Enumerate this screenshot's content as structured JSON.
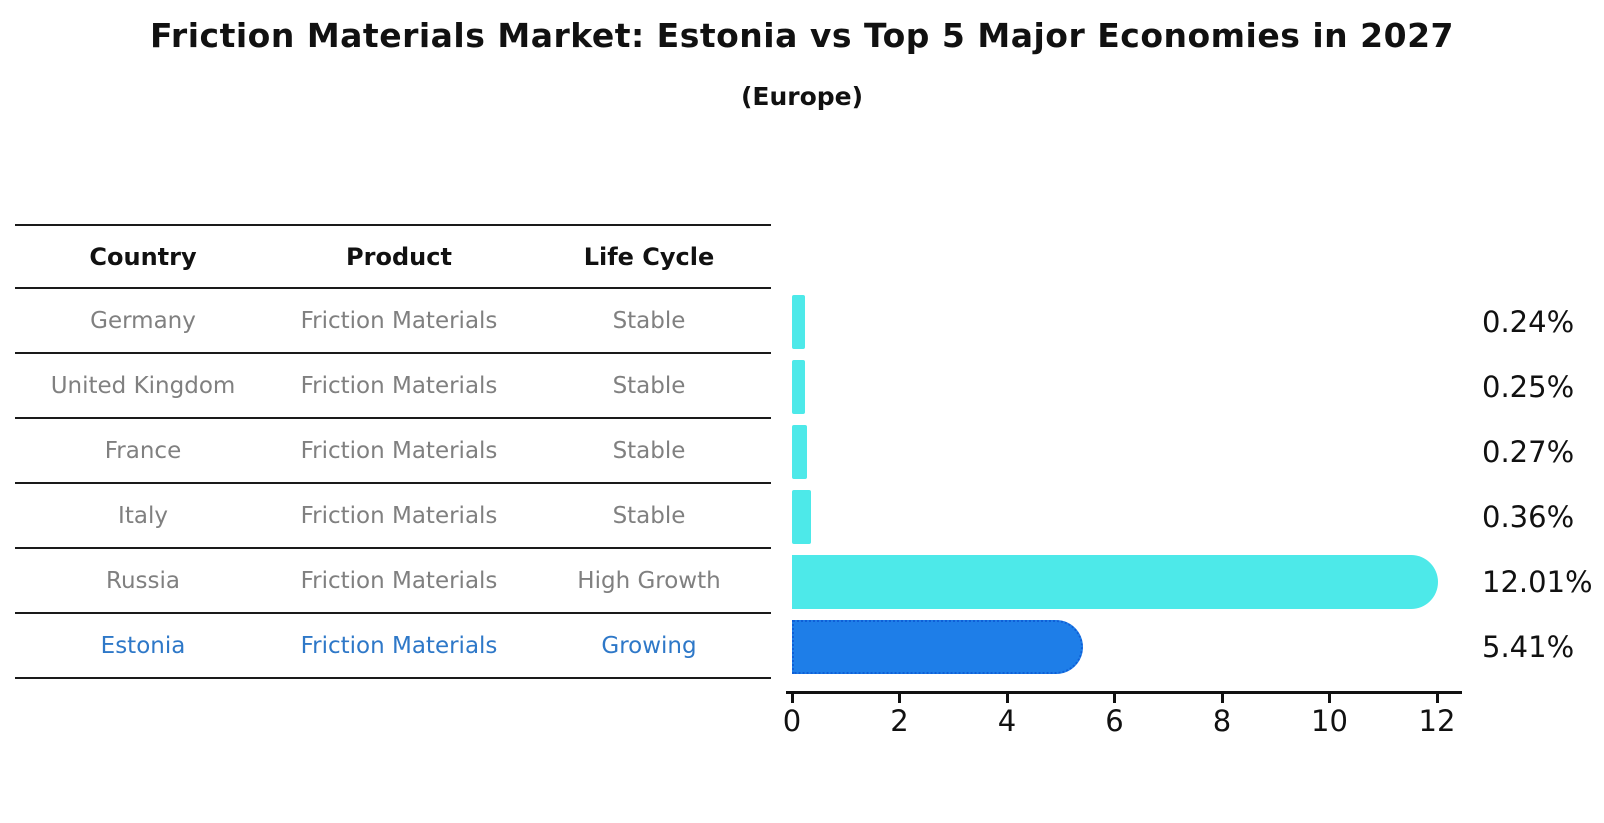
{
  "title": "Friction Materials Market: Estonia vs Top 5 Major Economies in 2027",
  "subtitle": "(Europe)",
  "table": {
    "headers": {
      "country": "Country",
      "product": "Product",
      "life_cycle": "Life Cycle"
    },
    "rows": [
      {
        "country": "Germany",
        "product": "Friction Materials",
        "life_cycle": "Stable",
        "highlighted": false
      },
      {
        "country": "United Kingdom",
        "product": "Friction Materials",
        "life_cycle": "Stable",
        "highlighted": false
      },
      {
        "country": "France",
        "product": "Friction Materials",
        "life_cycle": "Stable",
        "highlighted": false
      },
      {
        "country": "Italy",
        "product": "Friction Materials",
        "life_cycle": "Stable",
        "highlighted": false
      },
      {
        "country": "Russia",
        "product": "Friction Materials",
        "life_cycle": "High Growth",
        "highlighted": false
      },
      {
        "country": "Estonia",
        "product": "Friction Materials",
        "life_cycle": "Growing",
        "highlighted": true
      }
    ]
  },
  "chart_data": {
    "type": "bar",
    "orientation": "horizontal",
    "title": "Friction Materials Market: Estonia vs Top 5 Major Economies in 2027",
    "subtitle": "(Europe)",
    "categories": [
      "Germany",
      "United Kingdom",
      "France",
      "Italy",
      "Russia",
      "Estonia"
    ],
    "values": [
      0.24,
      0.25,
      0.27,
      0.36,
      12.01,
      5.41
    ],
    "value_labels": [
      "0.24%",
      "0.25%",
      "0.27%",
      "0.36%",
      "12.01%",
      "5.41%"
    ],
    "x_ticks": [
      0,
      2,
      4,
      6,
      8,
      10,
      12
    ],
    "xlim": [
      0,
      12.5
    ],
    "grid": false,
    "legend": false,
    "colors": {
      "bar_default": "#4de9e9",
      "bar_highlight": "#1e7ee8",
      "bar_highlight_border": "#0f5fd7",
      "highlight_text": "#2e78c8",
      "row_text": "#808080",
      "axis_text": "#111111"
    }
  }
}
